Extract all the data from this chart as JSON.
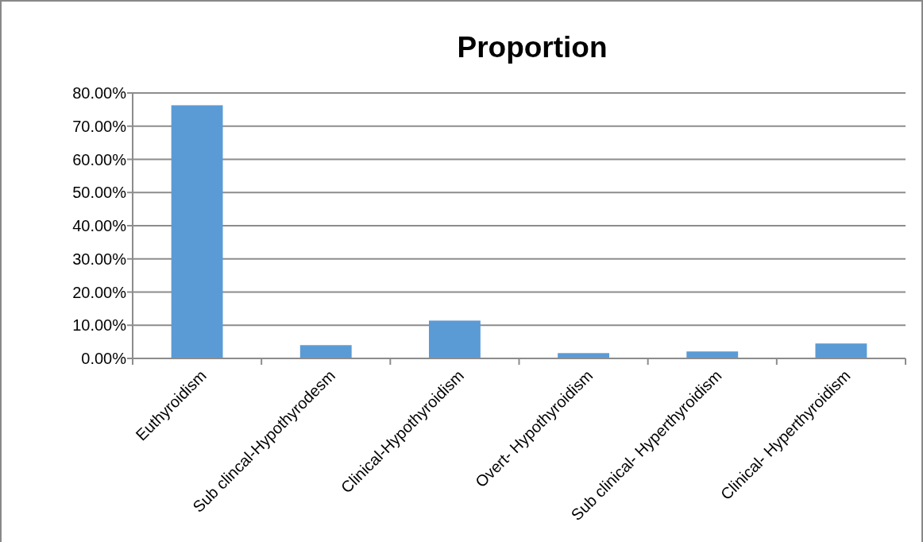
{
  "chart_data": {
    "type": "bar",
    "title": "Proportion",
    "categories": [
      "Euthyroidism",
      "Sub clincal-Hypothyrodesm",
      "Clinical-Hypothyroidism",
      "Overt- Hypothyroidism",
      "Sub clinical- Hyperthyroidism",
      "Clinical- Hyperthyroidism"
    ],
    "values": [
      76.3,
      4.0,
      11.4,
      1.6,
      2.1,
      4.5
    ],
    "color": "#5b9bd5",
    "ylim": [
      0,
      80
    ],
    "yticks": [
      {
        "value": 0,
        "label": "0.00%"
      },
      {
        "value": 10,
        "label": "10.00%"
      },
      {
        "value": 20,
        "label": "20.00%"
      },
      {
        "value": 30,
        "label": "30.00%"
      },
      {
        "value": 40,
        "label": "40.00%"
      },
      {
        "value": 50,
        "label": "50.00%"
      },
      {
        "value": 60,
        "label": "60.00%"
      },
      {
        "value": 70,
        "label": "70.00%"
      },
      {
        "value": 80,
        "label": "80.00%"
      }
    ],
    "grid": "y"
  }
}
